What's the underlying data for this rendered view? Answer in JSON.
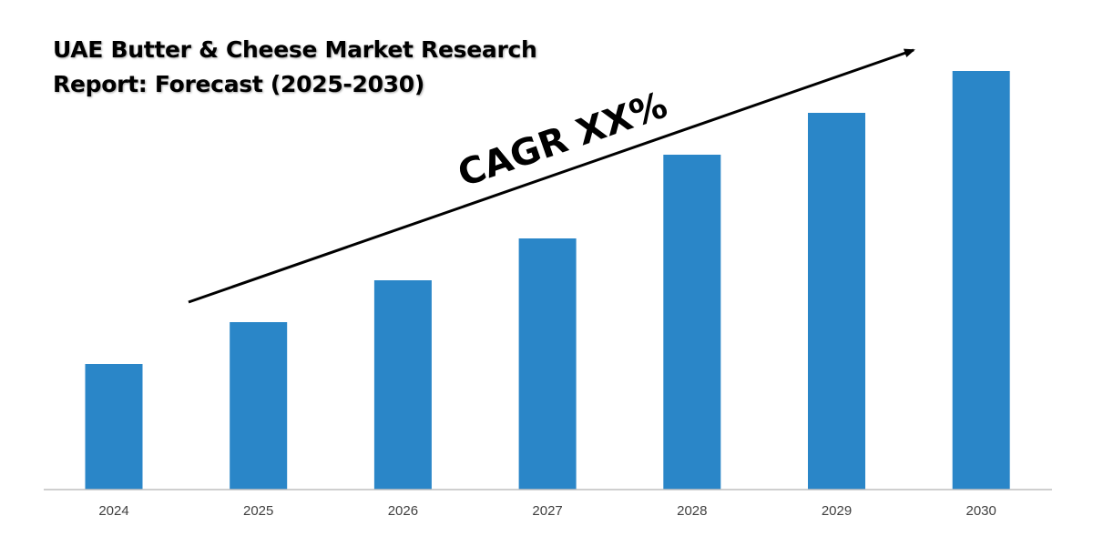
{
  "chart_data": {
    "type": "bar",
    "title_lines": [
      "UAE Butter & Cheese Market Research",
      "Report: Forecast (2025-2030)"
    ],
    "categories": [
      "2024",
      "2025",
      "2026",
      "2027",
      "2028",
      "2029",
      "2030"
    ],
    "values": [
      30,
      40,
      50,
      60,
      80,
      90,
      100
    ],
    "ylim": [
      0,
      100
    ],
    "annotation": "CAGR XX%",
    "bar_color": "#2a86c8",
    "axis_color": "#bfbfbf",
    "grid": false,
    "legend": "none"
  }
}
